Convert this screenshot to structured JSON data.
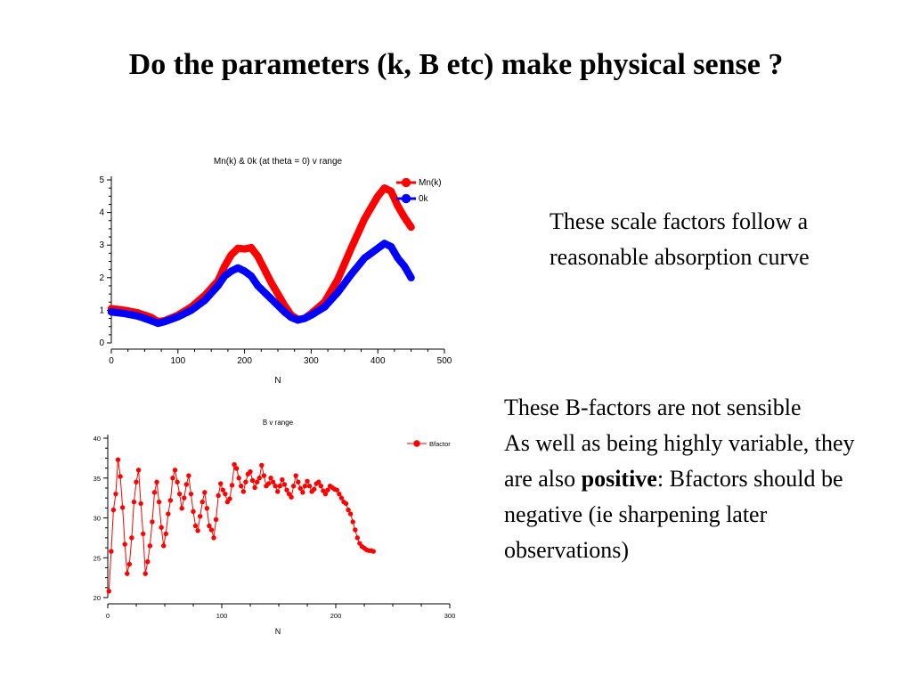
{
  "slide": {
    "title": "Do the parameters (k, B etc) make physical sense ?",
    "note_scale": "These scale factors follow a reasonable absorption curve",
    "note_b_line1": "These B-factors are not sensible",
    "note_b_line2_pre": "As well as being highly variable, they are also ",
    "note_b_bold": "positive",
    "note_b_line2_post": ": Bfactors should be negative (ie sharpening later observations)"
  },
  "chart_data": [
    {
      "type": "line",
      "title": "Mn(k) & 0k (at theta = 0) v range",
      "xlabel": "N",
      "ylabel": "",
      "xlim": [
        0,
        500
      ],
      "ylim": [
        0,
        5
      ],
      "xticks": [
        0,
        100,
        200,
        300,
        400,
        500
      ],
      "yticks": [
        0,
        1,
        2,
        3,
        4,
        5
      ],
      "legend_position": "top-right",
      "series": [
        {
          "name": "Mn(k)",
          "color": "#ff0000",
          "x": [
            0,
            20,
            40,
            60,
            70,
            80,
            100,
            120,
            140,
            160,
            170,
            180,
            190,
            200,
            210,
            220,
            230,
            240,
            260,
            270,
            280,
            290,
            300,
            320,
            340,
            360,
            380,
            400,
            410,
            420,
            430,
            440,
            450
          ],
          "y": [
            1.05,
            1.0,
            0.92,
            0.78,
            0.65,
            0.68,
            0.85,
            1.1,
            1.45,
            1.9,
            2.35,
            2.7,
            2.9,
            2.88,
            2.92,
            2.65,
            2.25,
            1.85,
            1.15,
            0.85,
            0.72,
            0.75,
            0.9,
            1.25,
            1.95,
            2.9,
            3.8,
            4.5,
            4.75,
            4.65,
            4.2,
            3.85,
            3.55
          ]
        },
        {
          "name": "0k",
          "color": "#0000ff",
          "x": [
            0,
            20,
            40,
            60,
            70,
            80,
            100,
            120,
            140,
            160,
            170,
            180,
            190,
            200,
            210,
            220,
            240,
            260,
            270,
            280,
            290,
            300,
            320,
            340,
            360,
            380,
            400,
            410,
            420,
            430,
            440,
            450
          ],
          "y": [
            0.95,
            0.9,
            0.82,
            0.68,
            0.6,
            0.65,
            0.8,
            1.0,
            1.3,
            1.75,
            2.05,
            2.2,
            2.3,
            2.2,
            2.05,
            1.75,
            1.35,
            0.95,
            0.78,
            0.7,
            0.75,
            0.85,
            1.1,
            1.55,
            2.1,
            2.6,
            2.9,
            3.05,
            2.95,
            2.6,
            2.35,
            2.0
          ]
        }
      ]
    },
    {
      "type": "line",
      "title": "B  v range",
      "xlabel": "N",
      "ylabel": "",
      "xlim": [
        0,
        300
      ],
      "ylim": [
        20,
        40
      ],
      "xticks": [
        0,
        100,
        200,
        300
      ],
      "yticks": [
        20,
        25,
        30,
        35,
        40
      ],
      "legend_position": "top-right",
      "series": [
        {
          "name": "Bfactor",
          "color": "#ff0000",
          "x": [
            1,
            3,
            5,
            7,
            9,
            11,
            13,
            15,
            17,
            19,
            21,
            23,
            25,
            27,
            29,
            31,
            33,
            35,
            37,
            39,
            41,
            43,
            45,
            47,
            49,
            51,
            53,
            55,
            57,
            59,
            61,
            63,
            65,
            67,
            69,
            71,
            73,
            75,
            77,
            79,
            81,
            83,
            85,
            87,
            89,
            91,
            93,
            95,
            97,
            99,
            101,
            103,
            105,
            107,
            109,
            111,
            113,
            115,
            117,
            119,
            121,
            123,
            125,
            127,
            129,
            131,
            133,
            135,
            137,
            139,
            141,
            143,
            145,
            147,
            149,
            151,
            153,
            155,
            157,
            159,
            161,
            163,
            165,
            167,
            169,
            171,
            173,
            175,
            177,
            179,
            181,
            183,
            185,
            187,
            189,
            191,
            193,
            195,
            197,
            199,
            201,
            203,
            205,
            207,
            209,
            211,
            213,
            215,
            217,
            219,
            221,
            223,
            225,
            227,
            229,
            231,
            233
          ],
          "y": [
            20.8,
            25.8,
            31.0,
            33.0,
            37.3,
            35.2,
            31.3,
            26.7,
            23.0,
            24.2,
            27.5,
            32.0,
            34.5,
            36.0,
            31.8,
            28.0,
            23.0,
            24.5,
            26.5,
            29.5,
            33.2,
            34.5,
            32.0,
            28.8,
            26.5,
            28.0,
            30.5,
            32.2,
            35.0,
            36.0,
            34.5,
            33.0,
            31.2,
            32.5,
            34.2,
            35.3,
            33.0,
            30.8,
            29.0,
            28.4,
            30.2,
            32.0,
            33.2,
            31.2,
            29.0,
            28.5,
            27.5,
            29.8,
            32.8,
            34.3,
            33.5,
            33.0,
            32.0,
            32.4,
            34.1,
            36.7,
            36.2,
            35.0,
            34.0,
            33.3,
            34.5,
            35.5,
            35.8,
            34.7,
            33.8,
            34.5,
            35.0,
            36.6,
            35.3,
            34.0,
            34.3,
            35.0,
            34.5,
            34.0,
            33.3,
            34.0,
            34.8,
            34.2,
            33.5,
            33.0,
            32.6,
            34.0,
            35.3,
            34.5,
            33.7,
            33.2,
            34.0,
            34.6,
            34.0,
            33.3,
            33.6,
            34.3,
            34.5,
            34.0,
            33.4,
            33.0,
            33.5,
            34.0,
            33.8,
            33.6,
            33.5,
            33.0,
            32.5,
            32.0,
            31.8,
            31.0,
            30.5,
            29.5,
            28.5,
            27.5,
            26.8,
            26.4,
            26.2,
            26.0,
            25.9,
            25.9,
            25.8
          ]
        }
      ]
    }
  ]
}
